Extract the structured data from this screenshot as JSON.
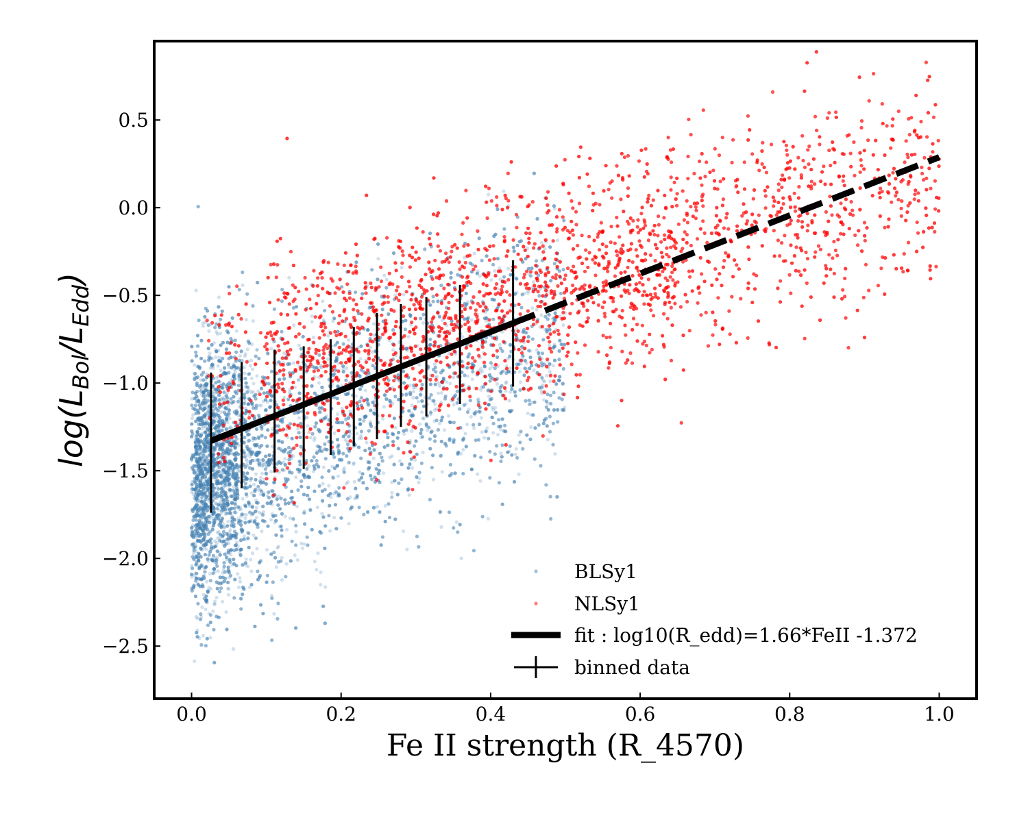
{
  "chart_data": {
    "type": "scatter",
    "xlabel": "Fe II strength (R_4570)",
    "ylabel": {
      "prefix": "log(L",
      "sub1": "Bol",
      "middle": "/L",
      "sub2": "Edd",
      "suffix": ")"
    },
    "xlim": [
      -0.05,
      1.05
    ],
    "ylim": [
      -2.8,
      0.95
    ],
    "xticks": [
      0.0,
      0.2,
      0.4,
      0.6,
      0.8,
      1.0
    ],
    "xtick_labels": [
      "0.0",
      "0.2",
      "0.4",
      "0.6",
      "0.8",
      "1.0"
    ],
    "yticks": [
      0.5,
      0.0,
      -0.5,
      -1.0,
      -1.5,
      -2.0,
      -2.5
    ],
    "ytick_labels": [
      "0.5",
      "0.0",
      "−0.5",
      "−1.0",
      "−1.5",
      "−2.0",
      "−2.5"
    ],
    "grid": false,
    "legend_position": "lower-right",
    "series": [
      {
        "name": "BLSy1",
        "color": "#4682b4",
        "marker": "circle",
        "distribution": {
          "x_range": [
            0.0,
            0.5
          ],
          "y_model": "-1.55 + 1.6*x",
          "y_scatter": 0.38,
          "approx_count": 9000
        }
      },
      {
        "name": "NLSy1",
        "color": "#ff0000",
        "marker": "circle",
        "distribution": {
          "x_range": [
            0.02,
            1.0
          ],
          "y_model": "-1.05 + 1.25*x",
          "y_scatter": 0.3,
          "approx_count": 9000
        }
      }
    ],
    "fit": {
      "label": "fit : log10(R_edd)=1.66*FeII -1.372",
      "slope": 1.66,
      "intercept": -1.372,
      "solid_range": [
        0.026,
        0.43
      ],
      "dashed_range": [
        0.43,
        1.0
      ],
      "color": "#000000"
    },
    "binned_data": {
      "label": "binned data",
      "color": "#000000",
      "x": [
        0.026,
        0.067,
        0.111,
        0.15,
        0.186,
        0.217,
        0.248,
        0.28,
        0.314,
        0.359,
        0.43
      ],
      "y": [
        -1.34,
        -1.24,
        -1.16,
        -1.14,
        -1.08,
        -1.02,
        -0.96,
        -0.9,
        -0.85,
        -0.78,
        -0.66
      ],
      "yerr": [
        0.4,
        0.36,
        0.35,
        0.35,
        0.33,
        0.34,
        0.36,
        0.35,
        0.34,
        0.34,
        0.36
      ]
    }
  }
}
